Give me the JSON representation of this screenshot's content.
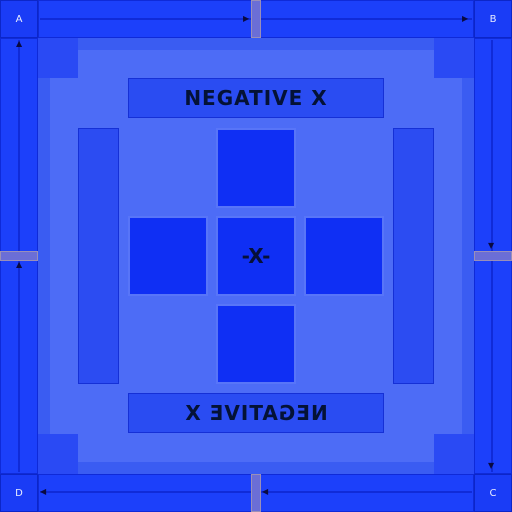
{
  "texture": {
    "face_label_top": "NEGATIVE X",
    "face_label_bottom": "NEGATIVE X",
    "center_label": "-X-"
  },
  "corners": {
    "top_left": "A",
    "top_right": "B",
    "bottom_right": "C",
    "bottom_left": "D"
  },
  "colors": {
    "background": "#1a3cff",
    "panel": "#4d6cf6",
    "cube_face": "#0f2ff4",
    "label_text": "#041236",
    "seam": "#6b6ed6"
  }
}
